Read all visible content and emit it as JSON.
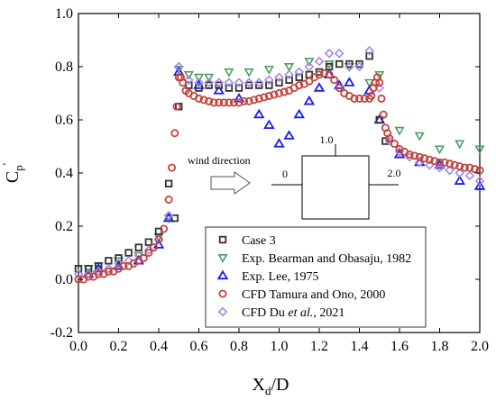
{
  "chart_data": {
    "type": "scatter",
    "xlabel": "X",
    "xlabel_sub": "d",
    "xlabel_suffix": "/D",
    "ylabel": "C",
    "ylabel_sub": "p",
    "ylabel_sup": "'",
    "xlim": [
      0.0,
      2.0
    ],
    "ylim": [
      -0.2,
      1.0
    ],
    "xticks": [
      "0.0",
      "0.2",
      "0.4",
      "0.6",
      "0.8",
      "1.0",
      "1.2",
      "1.4",
      "1.6",
      "1.8",
      "2.0"
    ],
    "yticks": [
      "-0.2",
      "0.0",
      "0.2",
      "0.4",
      "0.6",
      "0.8",
      "1.0"
    ],
    "legend_position": "lower-center",
    "annotation": {
      "wind_label": "wind direction",
      "label_left": "0",
      "label_top": "1.0",
      "label_right": "2.0"
    },
    "series": [
      {
        "name": "Case 3",
        "marker": "square",
        "color": "#333333",
        "x": [
          0.0,
          0.05,
          0.1,
          0.15,
          0.2,
          0.25,
          0.3,
          0.35,
          0.4,
          0.45,
          0.48,
          0.5,
          0.55,
          0.6,
          0.65,
          0.7,
          0.75,
          0.8,
          0.85,
          0.9,
          0.95,
          1.0,
          1.05,
          1.1,
          1.15,
          1.2,
          1.25,
          1.3,
          1.35,
          1.4,
          1.45,
          1.5,
          1.53
        ],
        "y": [
          0.04,
          0.04,
          0.05,
          0.07,
          0.08,
          0.1,
          0.12,
          0.14,
          0.18,
          0.36,
          0.23,
          0.65,
          0.73,
          0.72,
          0.73,
          0.73,
          0.72,
          0.72,
          0.73,
          0.73,
          0.73,
          0.74,
          0.75,
          0.76,
          0.77,
          0.78,
          0.8,
          0.81,
          0.81,
          0.81,
          0.84,
          0.6,
          0.52
        ]
      },
      {
        "name": "Exp. Bearman and Obasaju, 1982",
        "marker": "triangle-down",
        "color": "#4a9e62",
        "x": [
          0.05,
          0.1,
          0.2,
          0.3,
          0.4,
          0.45,
          0.5,
          0.55,
          0.6,
          0.65,
          0.75,
          0.85,
          0.95,
          1.05,
          1.15,
          1.25,
          1.35,
          1.45,
          1.5,
          1.6,
          1.7,
          1.8,
          1.9,
          2.0
        ],
        "y": [
          0.04,
          0.05,
          0.07,
          0.09,
          0.16,
          0.23,
          0.79,
          0.77,
          0.76,
          0.76,
          0.78,
          0.78,
          0.79,
          0.8,
          0.82,
          0.81,
          0.8,
          0.74,
          0.77,
          0.56,
          0.54,
          0.49,
          0.51,
          0.49
        ]
      },
      {
        "name": "Exp. Lee, 1975",
        "marker": "triangle-up",
        "color": "#1a1aff",
        "x": [
          0.05,
          0.1,
          0.2,
          0.3,
          0.4,
          0.45,
          0.5,
          0.6,
          0.7,
          0.8,
          0.9,
          0.95,
          1.0,
          1.05,
          1.1,
          1.15,
          1.2,
          1.25,
          1.3,
          1.35,
          1.45,
          1.5,
          1.6,
          1.7,
          1.8,
          1.9,
          2.0
        ],
        "y": [
          0.02,
          0.04,
          0.05,
          0.07,
          0.13,
          0.23,
          0.78,
          0.73,
          0.71,
          0.68,
          0.62,
          0.58,
          0.51,
          0.54,
          0.62,
          0.67,
          0.72,
          0.77,
          0.73,
          0.74,
          0.71,
          0.6,
          0.47,
          0.44,
          0.43,
          0.37,
          0.35
        ]
      },
      {
        "name": "CFD Tamura and Ono, 2000",
        "marker": "circle",
        "color": "#c2443b",
        "x": [
          0.0,
          0.025,
          0.05,
          0.075,
          0.1,
          0.125,
          0.15,
          0.175,
          0.2,
          0.225,
          0.25,
          0.275,
          0.3,
          0.325,
          0.35,
          0.375,
          0.4,
          0.425,
          0.45,
          0.465,
          0.48,
          0.49,
          0.5,
          0.51,
          0.52,
          0.535,
          0.55,
          0.575,
          0.6,
          0.625,
          0.65,
          0.675,
          0.7,
          0.725,
          0.75,
          0.775,
          0.8,
          0.825,
          0.85,
          0.875,
          0.9,
          0.925,
          0.95,
          0.975,
          1.0,
          1.025,
          1.05,
          1.075,
          1.1,
          1.125,
          1.15,
          1.175,
          1.2,
          1.225,
          1.25,
          1.275,
          1.3,
          1.325,
          1.35,
          1.375,
          1.4,
          1.425,
          1.45,
          1.46,
          1.47,
          1.48,
          1.49,
          1.5,
          1.51,
          1.52,
          1.53,
          1.54,
          1.55,
          1.575,
          1.6,
          1.625,
          1.65,
          1.675,
          1.7,
          1.725,
          1.75,
          1.775,
          1.8,
          1.825,
          1.85,
          1.875,
          1.9,
          1.925,
          1.95,
          1.975,
          2.0
        ],
        "y": [
          0.0,
          0.0,
          0.01,
          0.01,
          0.02,
          0.02,
          0.03,
          0.03,
          0.04,
          0.05,
          0.05,
          0.06,
          0.07,
          0.08,
          0.1,
          0.12,
          0.15,
          0.19,
          0.3,
          0.42,
          0.55,
          0.65,
          0.76,
          0.76,
          0.74,
          0.71,
          0.7,
          0.69,
          0.68,
          0.675,
          0.67,
          0.665,
          0.665,
          0.665,
          0.665,
          0.665,
          0.665,
          0.67,
          0.67,
          0.675,
          0.68,
          0.685,
          0.69,
          0.695,
          0.7,
          0.705,
          0.71,
          0.72,
          0.73,
          0.735,
          0.745,
          0.76,
          0.77,
          0.775,
          0.77,
          0.75,
          0.72,
          0.7,
          0.69,
          0.68,
          0.68,
          0.68,
          0.68,
          0.69,
          0.72,
          0.74,
          0.76,
          0.74,
          0.68,
          0.62,
          0.57,
          0.55,
          0.53,
          0.51,
          0.49,
          0.48,
          0.47,
          0.465,
          0.46,
          0.455,
          0.45,
          0.445,
          0.44,
          0.44,
          0.435,
          0.43,
          0.425,
          0.42,
          0.42,
          0.415,
          0.41
        ]
      },
      {
        "name": "CFD Du et al., 2021",
        "name_prefix": "CFD Du ",
        "name_italic": "et al.",
        "name_suffix": ", 2021",
        "marker": "diamond",
        "color": "#a68ae0",
        "x": [
          0.0,
          0.05,
          0.1,
          0.15,
          0.2,
          0.25,
          0.3,
          0.35,
          0.4,
          0.45,
          0.5,
          0.55,
          0.6,
          0.65,
          0.7,
          0.75,
          0.8,
          0.85,
          0.9,
          0.95,
          1.0,
          1.05,
          1.1,
          1.15,
          1.2,
          1.25,
          1.3,
          1.35,
          1.4,
          1.45,
          1.5,
          1.55,
          1.6,
          1.65,
          1.7,
          1.75,
          1.8,
          1.85,
          1.9,
          1.95,
          2.0
        ],
        "y": [
          0.02,
          0.02,
          0.03,
          0.04,
          0.06,
          0.07,
          0.09,
          0.11,
          0.15,
          0.24,
          0.8,
          0.75,
          0.74,
          0.74,
          0.74,
          0.74,
          0.74,
          0.74,
          0.74,
          0.75,
          0.76,
          0.77,
          0.78,
          0.8,
          0.82,
          0.85,
          0.85,
          0.8,
          0.8,
          0.86,
          0.72,
          0.52,
          0.48,
          0.46,
          0.44,
          0.43,
          0.42,
          0.41,
          0.4,
          0.39,
          0.37
        ]
      }
    ]
  }
}
